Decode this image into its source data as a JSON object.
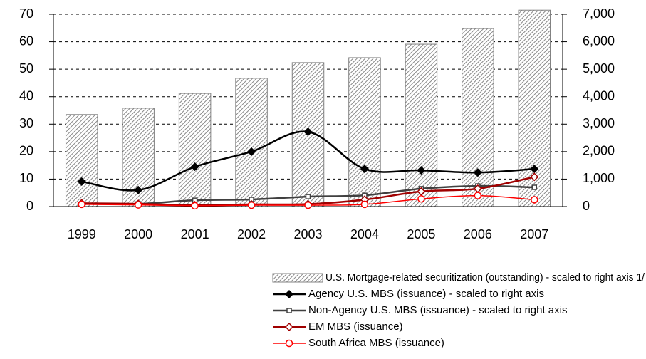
{
  "chart_data": {
    "type": "combo",
    "categories": [
      "1999",
      "2000",
      "2001",
      "2002",
      "2003",
      "2004",
      "2005",
      "2006",
      "2007"
    ],
    "ylim": [
      0,
      70
    ],
    "yticks": [
      0,
      10,
      20,
      30,
      40,
      50,
      60,
      70
    ],
    "y2lim": [
      0,
      7000
    ],
    "y2ticks": [
      0,
      {
        "value": 1000,
        "label": "1,000"
      },
      {
        "value": 2000,
        "label": "2,000"
      },
      {
        "value": 3000,
        "label": "3,000"
      },
      {
        "value": 4000,
        "label": "4,000"
      },
      {
        "value": 5000,
        "label": "5,000"
      },
      {
        "value": 6000,
        "label": "6,000"
      },
      {
        "value": 7000,
        "label": "7,000"
      }
    ],
    "grid": true,
    "legend": "bottom",
    "series": [
      {
        "name": "U.S. Mortgage-related securitization (outstanding) - scaled to right axis 1/",
        "type": "bar",
        "axis": "y2",
        "color": "#808080",
        "values": [
          3350,
          3580,
          4120,
          4670,
          5240,
          5420,
          5910,
          6480,
          7150
        ]
      },
      {
        "name": "Agency U.S. MBS (issuance) - scaled to right axis",
        "type": "line",
        "axis": "y2",
        "color": "#000000",
        "marker": "diamond-filled",
        "values": [
          910,
          600,
          1450,
          2000,
          2720,
          1370,
          1320,
          1240,
          1370
        ]
      },
      {
        "name": "Non-Agency U.S. MBS (issuance) - scaled to right axis",
        "type": "line",
        "axis": "y2",
        "color": "#404040",
        "marker": "square",
        "values": [
          100,
          100,
          230,
          260,
          360,
          410,
          650,
          750,
          700
        ]
      },
      {
        "name": "EM MBS (issuance)",
        "type": "line",
        "axis": "y",
        "color": "#a00000",
        "marker": "diamond-open",
        "values": [
          1.2,
          1.0,
          0.5,
          0.8,
          0.9,
          2.5,
          5.5,
          6.5,
          10.8
        ]
      },
      {
        "name": "South Africa MBS (issuance)",
        "type": "line",
        "axis": "y",
        "color": "#ff0000",
        "marker": "circle-open",
        "values": [
          0.8,
          0.6,
          0.3,
          0.5,
          0.5,
          0.8,
          2.8,
          4.0,
          2.5
        ]
      }
    ]
  }
}
